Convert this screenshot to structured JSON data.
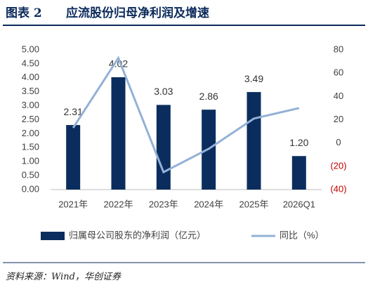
{
  "header": {
    "label": "图表 2"
  },
  "chart_data": {
    "type": "bar-line",
    "title": "应流股份归母净利润及增速",
    "categories": [
      "2021年",
      "2022年",
      "2023年",
      "2024年",
      "2025年",
      "2026Q1"
    ],
    "series": [
      {
        "name": "归属母公司股东的净利润（亿元）",
        "type": "bar",
        "color": "#0b2d5e",
        "values": [
          2.31,
          4.02,
          3.03,
          2.86,
          3.49,
          1.2
        ],
        "value_labels": [
          "2.31",
          "4.02",
          "3.03",
          "2.86",
          "3.49",
          "1.20"
        ]
      },
      {
        "name": "同比（%）",
        "type": "line",
        "axis": "y2",
        "color": "#93b1d6",
        "values": [
          13,
          73,
          -25,
          -5,
          21,
          30
        ]
      }
    ],
    "ylim": [
      0,
      5
    ],
    "yticks": [
      {
        "value": 0,
        "label": "0.00"
      },
      {
        "value": 0.5,
        "label": "0.50"
      },
      {
        "value": 1,
        "label": "1.00"
      },
      {
        "value": 1.5,
        "label": "1.50"
      },
      {
        "value": 2,
        "label": "2.00"
      },
      {
        "value": 2.5,
        "label": "2.50"
      },
      {
        "value": 3,
        "label": "3.00"
      },
      {
        "value": 3.5,
        "label": "3.50"
      },
      {
        "value": 4,
        "label": "4.00"
      },
      {
        "value": 4.5,
        "label": "4.50"
      },
      {
        "value": 5,
        "label": "5.00"
      }
    ],
    "y2lim": [
      -40,
      80
    ],
    "y2ticks": [
      {
        "value": -40,
        "label": "(40)"
      },
      {
        "value": -20,
        "label": "(20)"
      },
      0,
      20,
      40,
      60,
      80
    ],
    "grid": false,
    "legend": "bottom"
  },
  "source": "资料来源：Wind，华创证券"
}
